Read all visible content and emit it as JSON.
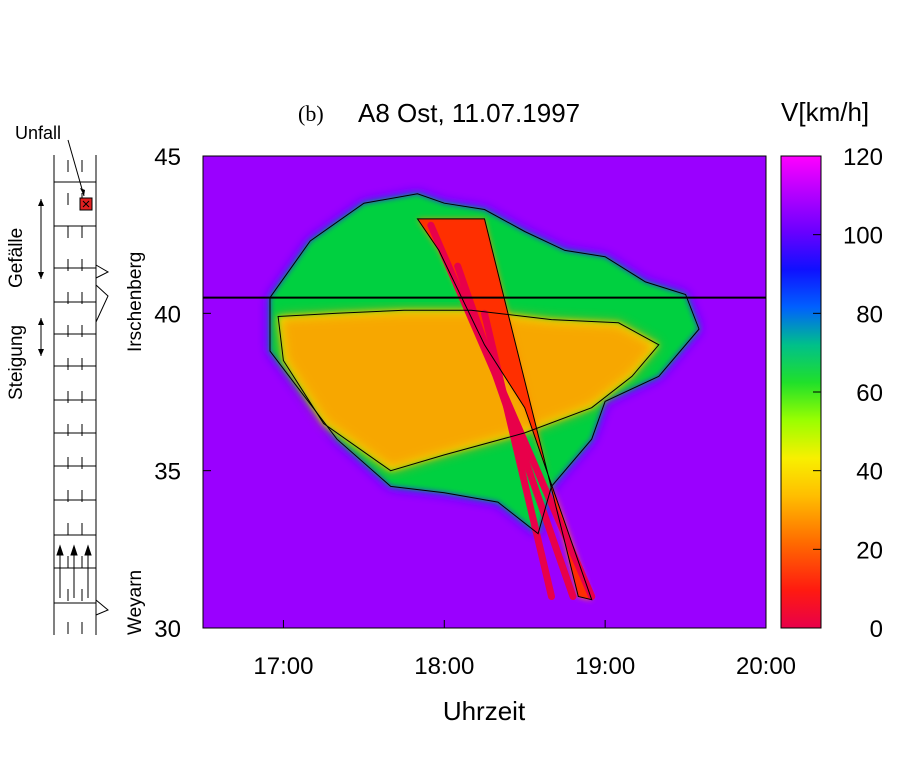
{
  "chart_data": {
    "type": "heatmap",
    "panel_label": "(b)",
    "title": "A8 Ost, 11.07.1997",
    "xlabel": "Uhrzeit",
    "xlim": [
      "16:30",
      "20:00"
    ],
    "x_ticks": [
      "17:00",
      "18:00",
      "19:00",
      "20:00"
    ],
    "ylim": [
      30,
      45
    ],
    "y_ticks": [
      30,
      35,
      40,
      45
    ],
    "colorbar": {
      "label": "V[km/h]",
      "range": [
        0,
        120
      ],
      "ticks": [
        0,
        20,
        40,
        60,
        80,
        100,
        120
      ]
    },
    "reference_line_km": 40.5,
    "congestion_regions": [
      {
        "kind": "outer_slow_region_km_h_below_70",
        "times": [
          "16:55",
          "17:10",
          "17:30",
          "17:50",
          "18:00",
          "18:15",
          "18:30",
          "18:45",
          "19:00",
          "19:15",
          "19:30",
          "19:35",
          "19:20",
          "19:00",
          "18:55",
          "18:40",
          "18:35",
          "18:20",
          "18:00",
          "17:40",
          "17:20",
          "16:55"
        ],
        "km": [
          40.5,
          42.3,
          43.5,
          43.8,
          43.5,
          43.3,
          42.6,
          42.0,
          41.8,
          41.0,
          40.6,
          39.5,
          38.0,
          37.2,
          36.0,
          34.5,
          33.0,
          34.0,
          34.3,
          34.5,
          36.0,
          38.8
        ]
      },
      {
        "kind": "upstream_mid_speed_region_30_to_50",
        "times": [
          "16:58",
          "17:20",
          "17:45",
          "18:10",
          "18:40",
          "19:05",
          "19:20",
          "19:10",
          "18:55",
          "18:30",
          "18:00",
          "17:40",
          "17:15",
          "17:00"
        ],
        "km": [
          39.9,
          40.0,
          40.1,
          40.1,
          39.8,
          39.7,
          39.0,
          38.0,
          37.0,
          36.2,
          35.5,
          35.0,
          36.5,
          38.5
        ]
      },
      {
        "kind": "wide_moving_jam_under_15",
        "times": [
          "17:50",
          "18:15",
          "18:50",
          "18:55",
          "18:30",
          "18:15",
          "17:58"
        ],
        "km": [
          43.0,
          43.0,
          31.0,
          30.9,
          37.0,
          39.0,
          42.0
        ]
      }
    ],
    "jam_fronts_below_10": [
      {
        "start": [
          "17:55",
          42.8
        ],
        "end": [
          "18:55",
          31.0
        ]
      },
      {
        "start": [
          "18:05",
          41.5
        ],
        "end": [
          "18:48",
          31.0
        ]
      },
      {
        "start": [
          "18:15",
          40.0
        ],
        "end": [
          "18:40",
          31.0
        ]
      }
    ],
    "free_flow_speed_km_h": 110
  },
  "road_sketch": {
    "incident_label": "Unfall",
    "downhill_label": "Gefälle",
    "uphill_label": "Steigung",
    "upper_location": "Irschenberg",
    "lower_location": "Weyarn"
  },
  "colors": {
    "stop": "#e8004a",
    "slow": "#ff8a00",
    "medium": "#e0ff00",
    "fair": "#00d040",
    "fast": "#0020ff",
    "free": "#ff00ff"
  }
}
